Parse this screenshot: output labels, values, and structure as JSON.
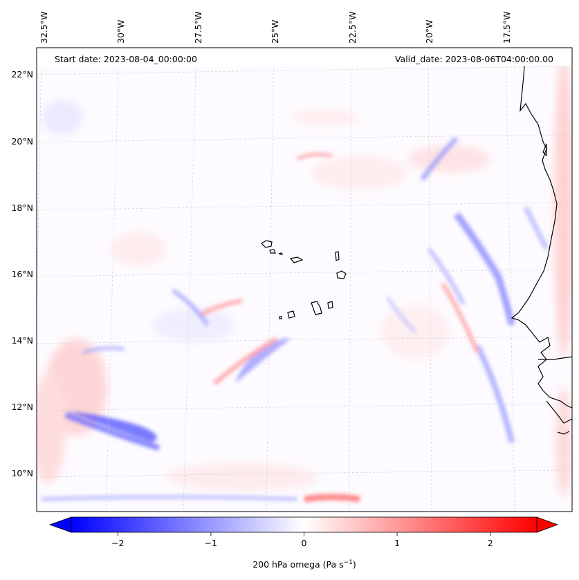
{
  "header": {
    "start_date": "Start date: 2023-08-04_00:00:00",
    "valid_date": "Valid_date: 2023-08-06T04:00:00.00"
  },
  "lon_labels": [
    "32.5°W",
    "30°W",
    "27.5°W",
    "25°W",
    "22.5°W",
    "20°W",
    "17.5°W"
  ],
  "lat_labels": [
    "22°N",
    "20°N",
    "18°N",
    "16°N",
    "14°N",
    "12°N",
    "10°N"
  ],
  "colorbar": {
    "ticks": [
      "−2",
      "−1",
      "0",
      "1",
      "2"
    ],
    "tick_values": [
      -2,
      -1,
      0,
      1,
      2
    ],
    "range": [
      -2.5,
      2.5
    ],
    "extend": "both",
    "label_prefix": "200 hPa omega (Pa s",
    "label_sup": "−1",
    "label_suffix": ")",
    "cmap": "bwr",
    "colors": {
      "min": "#0000ff",
      "mid": "#ffffff",
      "max": "#ff0000"
    }
  },
  "map": {
    "extent_lon": [
      -33.0,
      -15.8
    ],
    "extent_lat": [
      8.9,
      22.8
    ],
    "gridlines": true,
    "coastline_color": "#000000"
  }
}
